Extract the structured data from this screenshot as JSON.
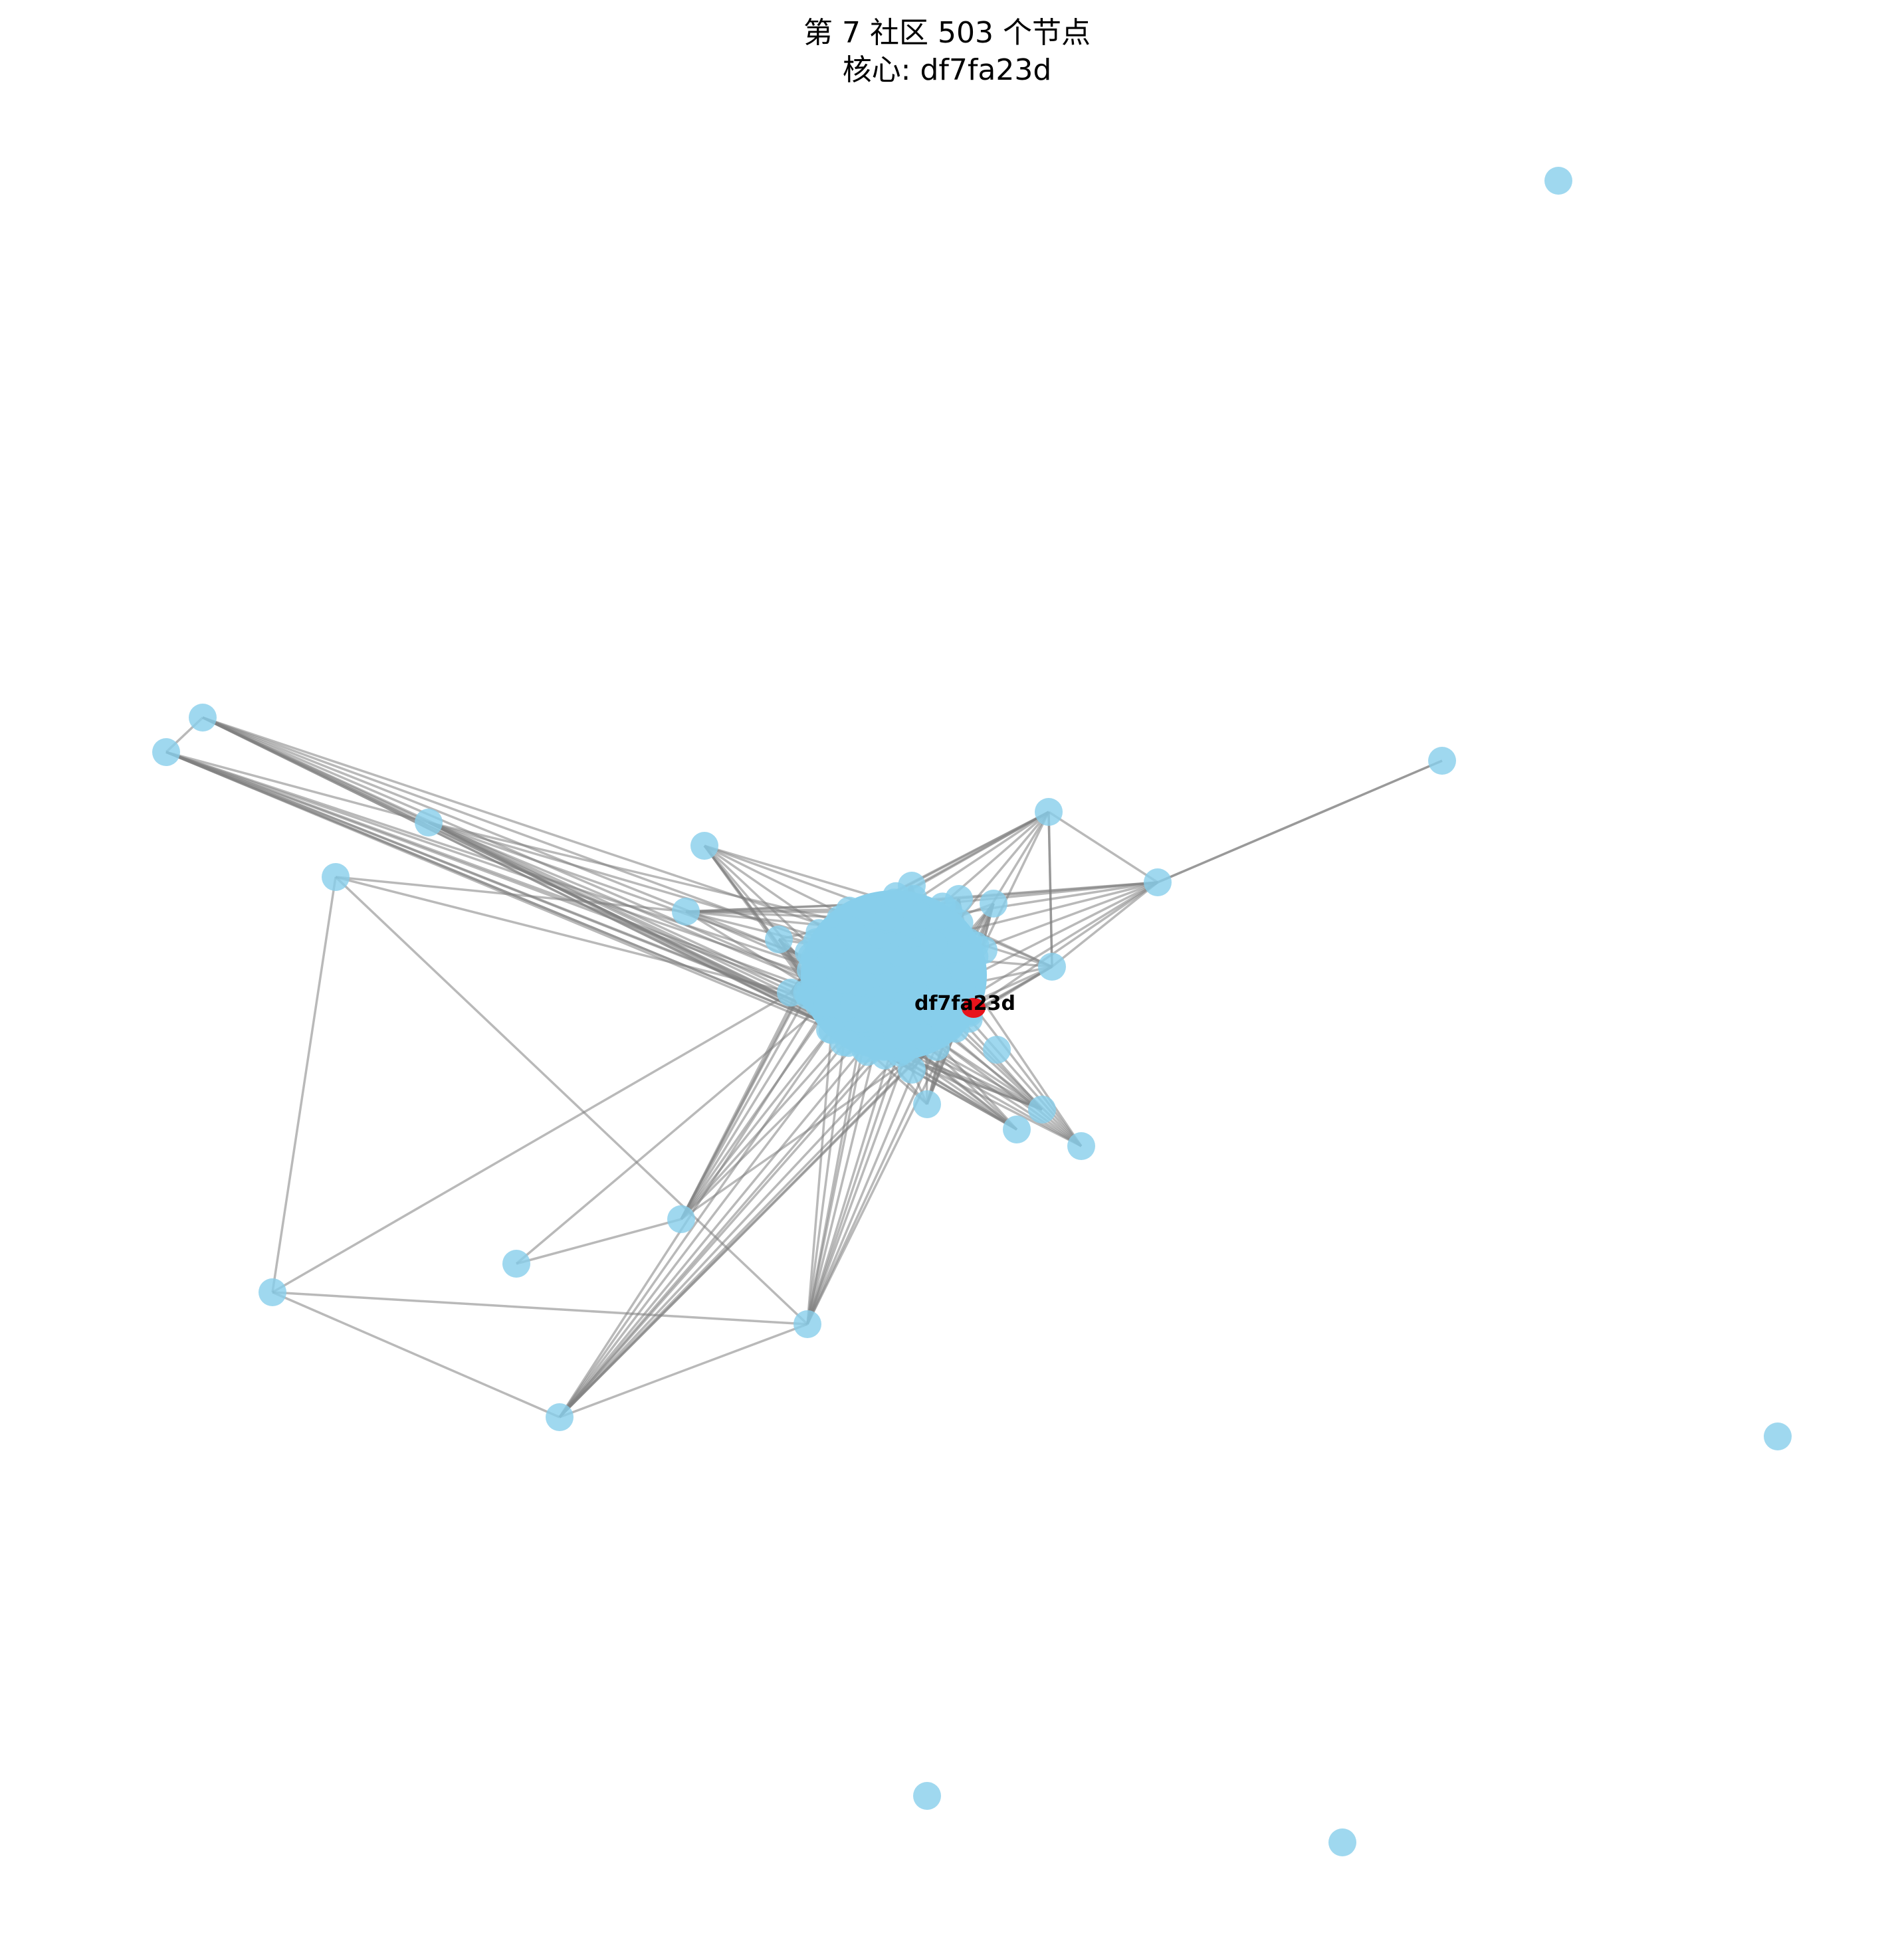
{
  "title_line1": "第 7 社区 503 个节点",
  "title_line2": "核心: df7fa23d",
  "colors": {
    "node": "#87ceeb",
    "edge": "#808080",
    "highlight": "#e8131b",
    "label": "#000000"
  },
  "graph": {
    "highlight_node": {
      "label": "df7fa23d"
    },
    "node_count": 503
  }
}
